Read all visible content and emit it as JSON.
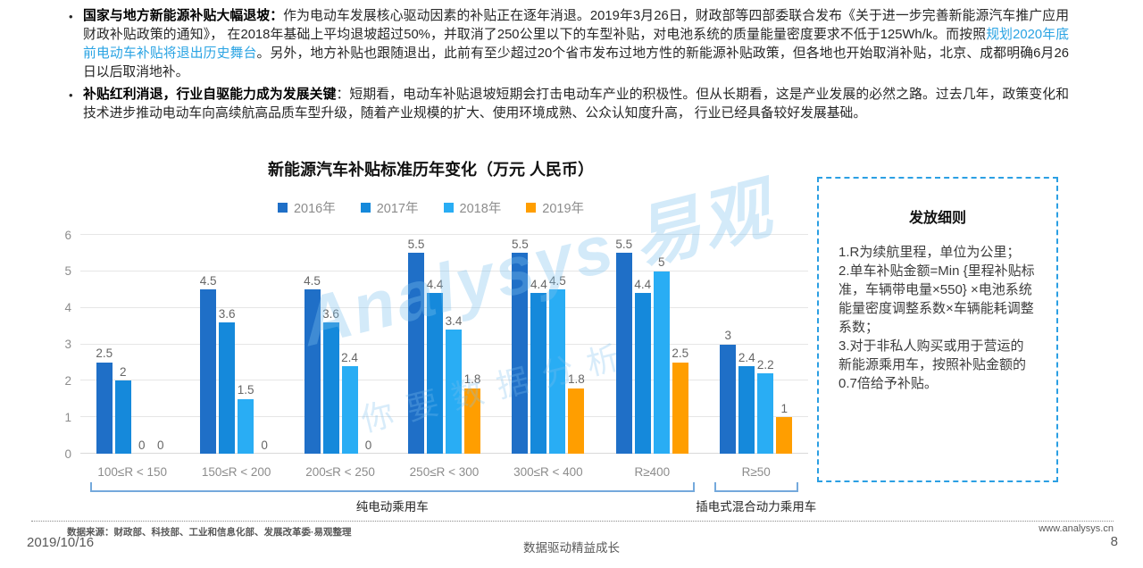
{
  "bullets": [
    {
      "bold": "国家与地方新能源补贴大幅退坡：",
      "text1": "作为电动车发展核心驱动因素的补贴正在逐年消退。2019年3月26日，财政部等四部委联合发布《关于进一步完善新能源汽车推广应用财政补贴政策的通知》， 在2018年基础上平均退坡超过50%，并取消了250公里以下的车型补贴，对电池系统的质量能量密度要求不低于125Wh/k。而按照",
      "link": "规划2020年底前电动车补贴将退出历史舞台",
      "text2": "。另外，地方补贴也跟随退出，此前有至少超过20个省市发布过地方性的新能源补贴政策，但各地也开始取消补贴，北京、成都明确6月26日以后取消地补。"
    },
    {
      "bold": "补贴红利消退，行业自驱能力成为发展关键",
      "text1": "：短期看，电动车补贴退坡短期会打击电动车产业的积极性。但从长期看，这是产业发展的必然之路。过去几年，政策变化和技术进步推动电动车向高续航高品质车型升级，随着产业规模的扩大、使用环境成熟、公众认知度升高， 行业已经具备较好发展基础。",
      "link": "",
      "text2": ""
    }
  ],
  "chart_data": {
    "type": "bar",
    "title": "新能源汽车补贴标准历年变化（万元 人民币）",
    "categories": [
      "100≤R < 150",
      "150≤R < 200",
      "200≤R < 250",
      "250≤R < 300",
      "300≤R < 400",
      "R≥400",
      "R≥50"
    ],
    "series": [
      {
        "name": "2016年",
        "color": "#1F6FC7",
        "values": [
          2.5,
          4.5,
          4.5,
          5.5,
          5.5,
          5.5,
          3
        ]
      },
      {
        "name": "2017年",
        "color": "#1589DB",
        "values": [
          2,
          3.6,
          3.6,
          4.4,
          4.4,
          4.4,
          2.4
        ]
      },
      {
        "name": "2018年",
        "color": "#29ADF4",
        "values": [
          0,
          1.5,
          2.4,
          3.4,
          4.5,
          5,
          2.2
        ]
      },
      {
        "name": "2019年",
        "color": "#FF9E00",
        "values": [
          0,
          0,
          0,
          1.8,
          1.8,
          2.5,
          1
        ]
      }
    ],
    "ylim": [
      0,
      6
    ],
    "yticks": [
      0,
      1,
      2,
      3,
      4,
      5,
      6
    ],
    "grid": true,
    "legend_position": "top",
    "group_brackets": [
      {
        "label": "纯电动乘用车",
        "from": 0,
        "to": 5
      },
      {
        "label": "插电式混合动力乘用车",
        "from": 6,
        "to": 6
      }
    ]
  },
  "panel": {
    "title": "发放细则",
    "items": [
      "1.R为续航里程，单位为公里；",
      "2.单车补贴金额=Min {里程补贴标准，车辆带电量×550} ×电池系统能量密度调整系数×车辆能耗调整系数；",
      "3.对于非私人购买或用于营运的新能源乘用车，按照补贴金额的0.7倍给予补贴。"
    ]
  },
  "watermark": {
    "brand": "Analysys 易观",
    "tagline": "你要数据分析"
  },
  "footer": {
    "source": "数据来源：财政部、科技部、工业和信息化部、发展改革委·易观整理",
    "date": "2019/10/16",
    "slogan": "数据驱动精益成长",
    "website": "www.analysys.cn",
    "page": "8"
  }
}
